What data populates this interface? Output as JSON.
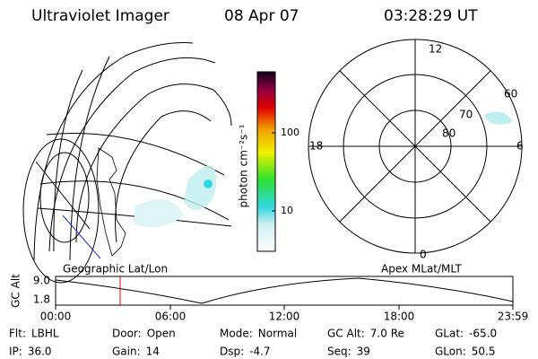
{
  "header": {
    "title": "Ultraviolet Imager",
    "date": "08 Apr 07",
    "time": "03:28:29 UT"
  },
  "colorbar": {
    "label": "photon cm⁻²s⁻¹",
    "ticks": [
      "100",
      "10"
    ]
  },
  "polar": {
    "mlt_labels": [
      "12",
      "18",
      "6",
      "0"
    ],
    "lat_labels": [
      "60",
      "70",
      "80"
    ]
  },
  "timeline": {
    "left_label": "Geographic Lat/Lon",
    "right_label": "Apex MLat/MLT",
    "axis_label": "GC Alt",
    "y_labels": [
      "9.0",
      "1.8"
    ],
    "x_labels": [
      "00:00",
      "06:00",
      "12:00",
      "18:00",
      "23:59"
    ]
  },
  "info": [
    [
      {
        "key": "Flt:",
        "value": "LBHL"
      },
      {
        "key": "Door:",
        "value": "Open"
      },
      {
        "key": "Mode:",
        "value": "Normal"
      },
      {
        "key": "GC Alt:",
        "value": "7.0 Re"
      },
      {
        "key": "GLat:",
        "value": "-65.0"
      }
    ],
    [
      {
        "key": "IP:",
        "value": "36.0"
      },
      {
        "key": "Gain:",
        "value": "14"
      },
      {
        "key": "Dsp:",
        "value": "-4.7"
      },
      {
        "key": "Seq:",
        "value": "39"
      },
      {
        "key": "GLon:",
        "value": "50.5"
      }
    ]
  ]
}
